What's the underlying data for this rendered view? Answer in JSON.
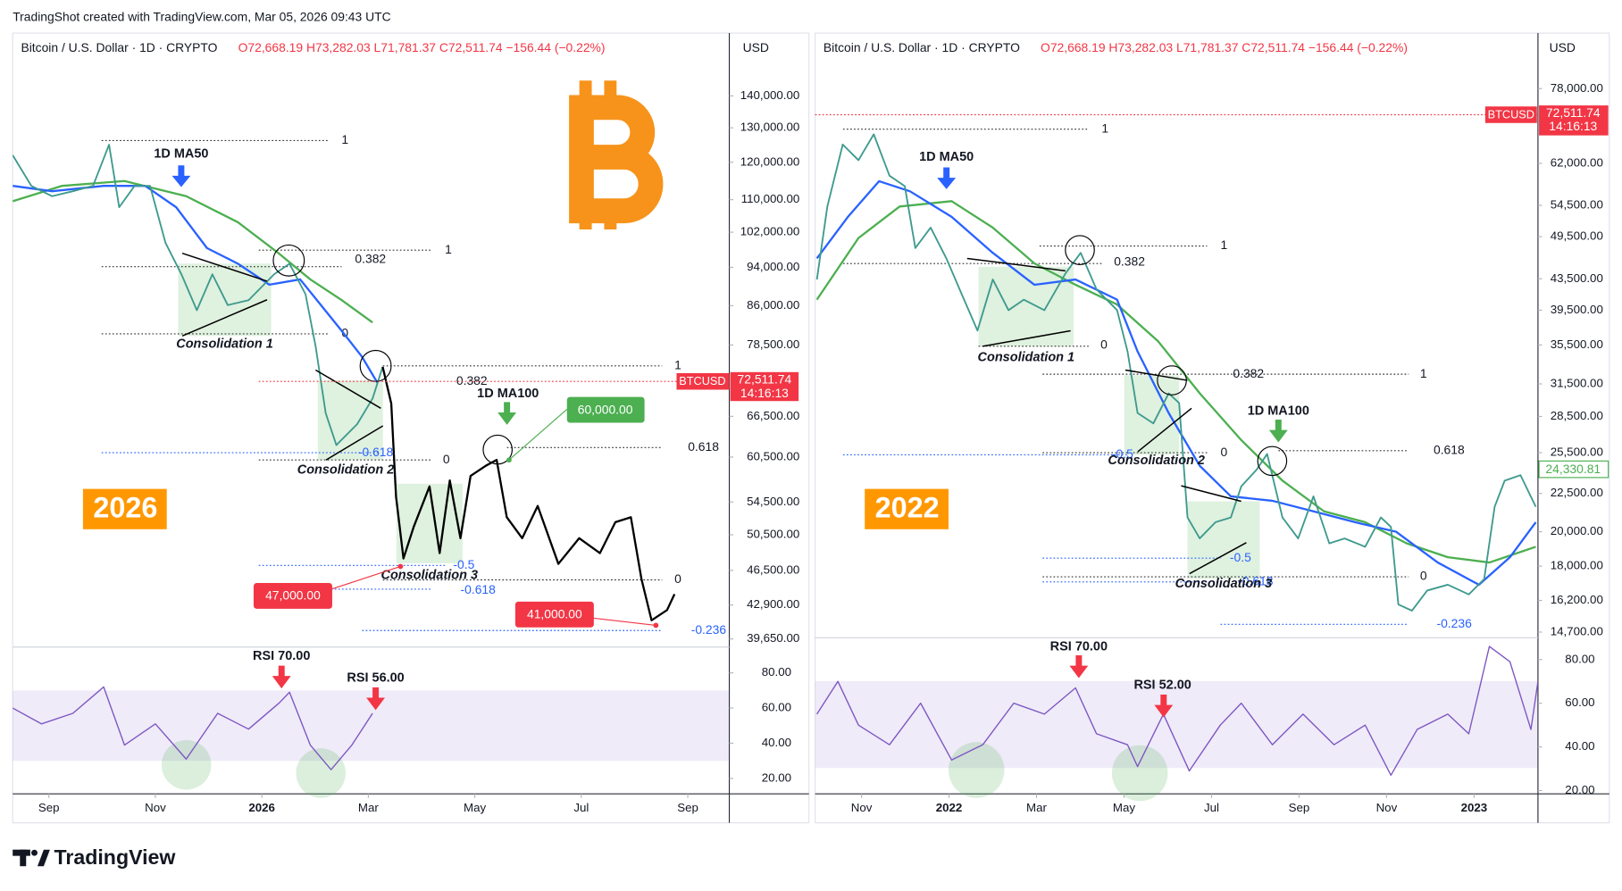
{
  "header": {
    "credit": "TradingShot created with TradingView.com, Mar 05, 2026 09:43 UTC"
  },
  "footer": {
    "brand": "TradingView"
  },
  "panels": [
    {
      "legend": {
        "symbol": "Bitcoin / U.S. Dollar · 1D · CRYPTO",
        "ohlc": "O72,668.19 H73,282.03 L71,781.37 C72,511.74 −156.44 (−0.22%)"
      },
      "currency": "USD",
      "year": "2026",
      "yaxis": {
        "log": true,
        "ylim": [
          39000,
          162000
        ],
        "yticks": [
          {
            "value": 140000,
            "label": "140,000.00"
          },
          {
            "value": 130000,
            "label": "130,000.00"
          },
          {
            "value": 120000,
            "label": "120,000.00"
          },
          {
            "value": 110000,
            "label": "110,000.00"
          },
          {
            "value": 102000,
            "label": "102,000.00"
          },
          {
            "value": 94000,
            "label": "94,000.00"
          },
          {
            "value": 86000,
            "label": "86,000.00"
          },
          {
            "value": 78500,
            "label": "78,500.00"
          },
          {
            "value": 66500,
            "label": "66,500.00"
          },
          {
            "value": 60500,
            "label": "60,500.00"
          },
          {
            "value": 54500,
            "label": "54,500.00"
          },
          {
            "value": 50500,
            "label": "50,500.00"
          },
          {
            "value": 46500,
            "label": "46,500.00"
          },
          {
            "value": 42900,
            "label": "42,900.00"
          },
          {
            "value": 39650,
            "label": "39,650.00"
          }
        ]
      },
      "xaxis": {
        "xlim": [
          -0.68,
          12.78
        ],
        "xticks": [
          {
            "value": 0,
            "label": "Sep"
          },
          {
            "value": 2,
            "label": "Nov"
          },
          {
            "value": 4,
            "label": "2026"
          },
          {
            "value": 6,
            "label": "Mar"
          },
          {
            "value": 8,
            "label": "May"
          },
          {
            "value": 10,
            "label": "Jul"
          },
          {
            "value": 12,
            "label": "Sep"
          }
        ]
      },
      "series": {
        "price": {
          "color": "#3e9a8e",
          "x": [
            -0.68,
            -0.33,
            0.06,
            0.45,
            0.83,
            1.13,
            1.32,
            1.61,
            1.9,
            2.19,
            2.49,
            2.78,
            3.07,
            3.36,
            3.75,
            4.23,
            4.52,
            4.82,
            5.01,
            5.2,
            5.4,
            5.79,
            6.08,
            6.27
          ],
          "values": [
            122000,
            113600,
            110900,
            112200,
            113600,
            125000,
            108100,
            113600,
            113600,
            99500,
            92500,
            85100,
            92500,
            86100,
            87100,
            92500,
            94800,
            88300,
            78200,
            67000,
            62200,
            65300,
            69300,
            74600
          ]
        },
        "projection": {
          "color": "#000000",
          "x": [
            6.27,
            6.43,
            6.52,
            6.66,
            6.85,
            7.15,
            7.34,
            7.53,
            7.73,
            7.92,
            8.21,
            8.41,
            8.6,
            8.89,
            9.18,
            9.57,
            9.96,
            10.35,
            10.64,
            10.93,
            11.13,
            11.32,
            11.61,
            11.75
          ],
          "values": [
            74600,
            68500,
            55200,
            47800,
            51400,
            56500,
            48400,
            57300,
            50100,
            57900,
            59300,
            60100,
            52600,
            50100,
            54000,
            47200,
            50100,
            48400,
            52000,
            52600,
            45600,
            41400,
            42400,
            44000
          ]
        },
        "ma50": {
          "color": "#2962ff",
          "x": [
            -0.68,
            0.06,
            1.03,
            1.81,
            2.39,
            2.97,
            3.55,
            4.14,
            4.72,
            5.11,
            5.5,
            5.88,
            6.17
          ],
          "values": [
            113600,
            112200,
            113600,
            113600,
            108100,
            98300,
            94800,
            90300,
            91400,
            86100,
            81100,
            76400,
            71900
          ]
        },
        "ma100": {
          "color": "#4caf50",
          "x": [
            -0.68,
            0.25,
            1.42,
            2.58,
            3.55,
            4.33,
            4.91,
            5.5,
            6.08
          ],
          "values": [
            109600,
            113600,
            114900,
            110900,
            104400,
            97000,
            91400,
            87100,
            82700
          ]
        }
      },
      "rsi": {
        "color": "#7e57c2",
        "ylim": [
          13,
          93.5
        ],
        "yticks": [
          {
            "value": 80,
            "label": "80.00"
          },
          {
            "value": 60,
            "label": "60.00"
          },
          {
            "value": 40,
            "label": "40.00"
          },
          {
            "value": 20,
            "label": "20.00"
          }
        ],
        "x": [
          -0.68,
          -0.14,
          0.45,
          1.03,
          1.42,
          2.0,
          2.58,
          3.17,
          3.75,
          4.33,
          4.52,
          4.91,
          5.3,
          5.69,
          6.08
        ],
        "values": [
          60,
          51,
          57,
          72,
          39,
          51,
          31,
          57,
          48,
          63,
          69,
          39,
          25,
          39,
          57
        ]
      },
      "labels": {
        "ma50": "1D MA50",
        "ma100": "1D MA100",
        "cons1": "Consolidation 1",
        "cons2": "Consolidation 2",
        "cons3": "Consolidation 3",
        "rsi_a": "RSI 70.00",
        "rsi_b": "RSI 56.00"
      },
      "fib": [
        1,
        1,
        0.382,
        0,
        1,
        0.382,
        -0.618,
        0,
        0.618,
        -0.5,
        -0.618,
        0,
        -0.236
      ],
      "tags": {
        "target": {
          "value": 60000,
          "label": "60,000.00"
        },
        "low1": {
          "value": 47000,
          "label": "47,000.00"
        },
        "low2": {
          "value": 41000,
          "label": "41,000.00"
        }
      },
      "last": {
        "symbol": "BTCUSD",
        "price": "72,511.74",
        "timer": "14:16:13"
      }
    },
    {
      "legend": {
        "symbol": "Bitcoin / U.S. Dollar · 1D · CRYPTO",
        "ohlc": "O72,668.19 H73,282.03 L71,781.37 C72,511.74 −156.44 (−0.22%)"
      },
      "currency": "USD",
      "year": "2022",
      "yaxis": {
        "log": true,
        "ylim": [
          14400,
          92500
        ],
        "yticks": [
          {
            "value": 78000,
            "label": "78,000.00"
          },
          {
            "value": 62000,
            "label": "62,000.00"
          },
          {
            "value": 54500,
            "label": "54,500.00"
          },
          {
            "value": 49500,
            "label": "49,500.00"
          },
          {
            "value": 43500,
            "label": "43,500.00"
          },
          {
            "value": 39500,
            "label": "39,500.00"
          },
          {
            "value": 35500,
            "label": "35,500.00"
          },
          {
            "value": 31500,
            "label": "31,500.00"
          },
          {
            "value": 28500,
            "label": "28,500.00"
          },
          {
            "value": 25500,
            "label": "25,500.00"
          },
          {
            "value": 22500,
            "label": "22,500.00"
          },
          {
            "value": 20000,
            "label": "20,000.00"
          },
          {
            "value": 18000,
            "label": "18,000.00"
          },
          {
            "value": 16200,
            "label": "16,200.00"
          },
          {
            "value": 14700,
            "label": "14,700.00"
          }
        ]
      },
      "xaxis": {
        "xlim": [
          -1.06,
          15.46
        ],
        "xticks": [
          {
            "value": 0,
            "label": "Nov"
          },
          {
            "value": 2,
            "label": "2022"
          },
          {
            "value": 4,
            "label": "Mar"
          },
          {
            "value": 6,
            "label": "May"
          },
          {
            "value": 8,
            "label": "Jul"
          },
          {
            "value": 10,
            "label": "Sep"
          },
          {
            "value": 12,
            "label": "Nov"
          },
          {
            "value": 14,
            "label": "2023"
          }
        ]
      },
      "series": {
        "price": {
          "color": "#3e9a8e",
          "x": [
            -1.02,
            -0.78,
            -0.43,
            -0.07,
            0.28,
            0.64,
            0.99,
            1.23,
            1.58,
            1.94,
            2.29,
            2.65,
            3.0,
            3.36,
            3.71,
            4.18,
            4.66,
            5.01,
            5.37,
            5.84,
            6.08,
            6.31,
            6.67,
            7.02,
            7.26,
            7.45,
            7.73,
            8.09,
            8.44,
            8.68,
            9.03,
            9.27,
            9.62,
            9.98,
            10.33,
            10.69,
            11.04,
            11.51,
            11.87,
            12.1,
            12.27,
            12.58,
            12.93,
            13.4,
            13.88,
            14.23,
            14.47,
            14.7,
            15.06,
            15.41
          ],
          "values": [
            43400,
            54300,
            65700,
            62600,
            67800,
            59700,
            57800,
            47800,
            50900,
            46300,
            41500,
            37100,
            43400,
            39500,
            40800,
            39500,
            44200,
            47100,
            42100,
            39500,
            34800,
            28800,
            27900,
            30600,
            29700,
            20900,
            19600,
            20600,
            20900,
            23000,
            24200,
            25400,
            20900,
            19600,
            22300,
            19300,
            19600,
            19100,
            20900,
            20300,
            16000,
            15700,
            16700,
            17000,
            16500,
            17300,
            21600,
            23400,
            23800,
            21600
          ]
        },
        "ma50": {
          "color": "#2962ff",
          "x": [
            -1.02,
            -0.31,
            0.4,
            1.11,
            2.06,
            3.0,
            3.95,
            4.89,
            5.84,
            6.31,
            7.02,
            7.73,
            8.44,
            9.39,
            10.33,
            11.28,
            12.22,
            13.17,
            14.11,
            14.82,
            15.41
          ],
          "values": [
            46300,
            52600,
            58700,
            56900,
            52600,
            47100,
            42700,
            43400,
            40800,
            34800,
            28800,
            24500,
            22300,
            22000,
            21300,
            20600,
            20000,
            18200,
            17000,
            18500,
            20600
          ]
        },
        "ma100": {
          "color": "#4caf50",
          "x": [
            -1.02,
            -0.07,
            0.87,
            2.06,
            3.0,
            3.95,
            4.89,
            5.84,
            6.78,
            7.73,
            8.68,
            9.62,
            10.57,
            11.51,
            12.46,
            13.4,
            14.35,
            15.06,
            15.41
          ],
          "values": [
            40800,
            49300,
            54300,
            55200,
            50900,
            45600,
            42700,
            40200,
            35900,
            30600,
            26500,
            23400,
            21300,
            20600,
            19300,
            18500,
            18200,
            18800,
            19100
          ]
        }
      },
      "rsi": {
        "color": "#7e57c2",
        "ylim": [
          18.5,
          89.5
        ],
        "yticks": [
          {
            "value": 80,
            "label": "80.00"
          },
          {
            "value": 60,
            "label": "60.00"
          },
          {
            "value": 40,
            "label": "40.00"
          },
          {
            "value": 20,
            "label": "20.00"
          }
        ],
        "x": [
          -1.02,
          -0.54,
          -0.07,
          0.64,
          1.35,
          2.06,
          2.77,
          3.48,
          4.18,
          4.89,
          5.37,
          6.08,
          6.31,
          6.9,
          7.49,
          8.2,
          8.68,
          9.39,
          10.09,
          10.8,
          11.51,
          12.1,
          12.7,
          13.4,
          13.88,
          14.35,
          14.82,
          15.3,
          15.46
        ],
        "values": [
          55,
          70,
          50,
          41,
          60,
          34,
          41,
          60,
          55,
          67,
          46,
          41,
          31,
          55,
          29,
          50,
          60,
          41,
          55,
          41,
          50,
          27,
          48,
          55,
          46,
          86,
          79,
          48,
          70
        ]
      },
      "labels": {
        "ma50": "1D MA50",
        "ma100": "1D MA100",
        "cons1": "Consolidation 1",
        "cons2": "Consolidation 2",
        "cons3": "Consolidation 3",
        "rsi_a": "RSI 70.00",
        "rsi_b": "RSI 52.00"
      },
      "fib": [
        1,
        1,
        0.382,
        0,
        0.382,
        1,
        -0.5,
        0,
        0.618,
        -0.5,
        -0.618,
        0,
        -0.236
      ],
      "tags": {
        "close": {
          "value": 24330.81,
          "label": "24,330.81"
        }
      },
      "last": {
        "symbol": "BTCUSD",
        "price": "72,511.74",
        "timer": "14:16:13"
      }
    }
  ]
}
